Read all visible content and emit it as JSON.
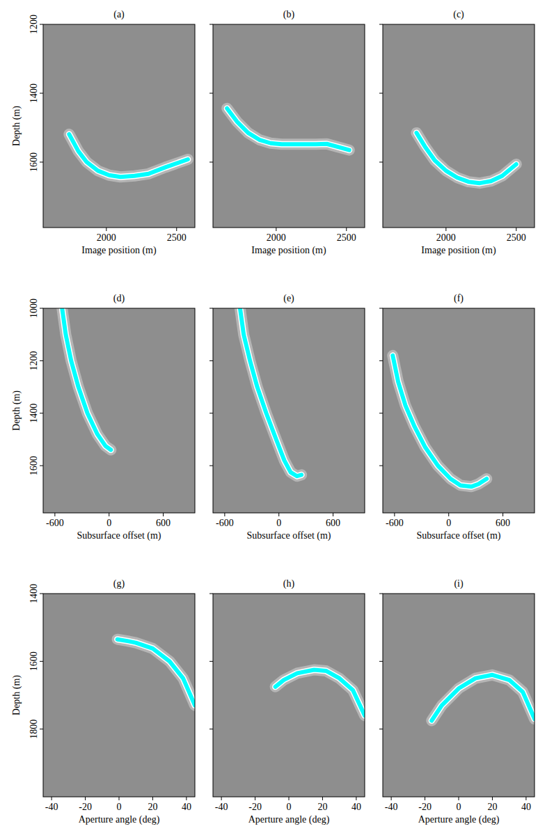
{
  "chart_data": [
    {
      "type": "line",
      "title": "(a)",
      "x_label": "Image position (m)",
      "y_label": "Depth (m)",
      "xlim": [
        1550,
        2630
      ],
      "ylim": [
        1790,
        1200
      ],
      "xticks": [
        2000,
        2500
      ],
      "yticks": [
        1200,
        1400,
        1600
      ],
      "series": [
        {
          "color": "#00ffff",
          "x": [
            1735,
            1800,
            1860,
            1940,
            2020,
            2100,
            2200,
            2300,
            2420,
            2580
          ],
          "values": [
            1519,
            1568,
            1600,
            1625,
            1638,
            1643,
            1640,
            1634,
            1615,
            1592
          ]
        }
      ]
    },
    {
      "type": "line",
      "title": "(b)",
      "x_label": "Image position (m)",
      "xlim": [
        1550,
        2630
      ],
      "ylim": [
        1790,
        1200
      ],
      "xticks": [
        2000,
        2500
      ],
      "yticks": [
        1200,
        1400,
        1600
      ],
      "tick_labels": "x",
      "series": [
        {
          "color": "#00ffff",
          "x": [
            1650,
            1720,
            1800,
            1880,
            1960,
            2040,
            2120,
            2200,
            2280,
            2360,
            2440,
            2520
          ],
          "values": [
            1444,
            1482,
            1515,
            1535,
            1545,
            1548,
            1548,
            1548,
            1548,
            1547,
            1556,
            1565
          ]
        }
      ]
    },
    {
      "type": "line",
      "title": "(c)",
      "x_label": "Image position (m)",
      "xlim": [
        1550,
        2630
      ],
      "ylim": [
        1790,
        1200
      ],
      "xticks": [
        2000,
        2500
      ],
      "yticks": [
        1200,
        1400,
        1600
      ],
      "tick_labels": "x",
      "series": [
        {
          "color": "#00ffff",
          "x": [
            1790,
            1850,
            1920,
            2000,
            2080,
            2160,
            2240,
            2320,
            2400,
            2500
          ],
          "values": [
            1515,
            1555,
            1595,
            1625,
            1645,
            1657,
            1661,
            1655,
            1640,
            1606
          ]
        }
      ]
    },
    {
      "type": "line",
      "title": "(d)",
      "x_label": "Subsurface offset (m)",
      "y_label": "Depth (m)",
      "xlim": [
        -730,
        950
      ],
      "ylim": [
        1780,
        1000
      ],
      "xticks": [
        -600,
        0,
        600
      ],
      "yticks": [
        1000,
        1200,
        1400,
        1600
      ],
      "series": [
        {
          "color": "#00ffff",
          "x": [
            -520,
            -480,
            -420,
            -340,
            -240,
            -130,
            -40,
            20
          ],
          "values": [
            1000,
            1100,
            1200,
            1300,
            1400,
            1480,
            1525,
            1540
          ]
        }
      ]
    },
    {
      "type": "line",
      "title": "(e)",
      "x_label": "Subsurface offset (m)",
      "xlim": [
        -730,
        950
      ],
      "ylim": [
        1780,
        1000
      ],
      "xticks": [
        -600,
        0,
        600
      ],
      "yticks": [
        1000,
        1200,
        1400,
        1600
      ],
      "tick_labels": "x",
      "series": [
        {
          "color": "#00ffff",
          "x": [
            -430,
            -390,
            -320,
            -240,
            -140,
            -30,
            60,
            130,
            200,
            250
          ],
          "values": [
            1000,
            1100,
            1200,
            1300,
            1400,
            1500,
            1580,
            1625,
            1640,
            1635
          ]
        }
      ]
    },
    {
      "type": "line",
      "title": "(f)",
      "x_label": "Subsurface offset (m)",
      "xlim": [
        -730,
        950
      ],
      "ylim": [
        1780,
        1000
      ],
      "xticks": [
        -600,
        0,
        600
      ],
      "yticks": [
        1000,
        1200,
        1400,
        1600
      ],
      "tick_labels": "x",
      "series": [
        {
          "color": "#00ffff",
          "x": [
            -620,
            -560,
            -480,
            -380,
            -260,
            -120,
            20,
            130,
            250,
            330,
            420
          ],
          "values": [
            1180,
            1280,
            1370,
            1450,
            1530,
            1600,
            1650,
            1675,
            1680,
            1670,
            1650
          ]
        }
      ]
    },
    {
      "type": "line",
      "title": "(g)",
      "x_label": "Aperture angle (deg)",
      "y_label": "Depth (m)",
      "xlim": [
        -45,
        45
      ],
      "ylim": [
        2000,
        1400
      ],
      "xticks": [
        -40,
        -20,
        0,
        20,
        40
      ],
      "yticks": [
        1400,
        1600,
        1800
      ],
      "series": [
        {
          "color": "#00ffff",
          "x": [
            -1,
            5,
            10,
            20,
            30,
            38,
            45
          ],
          "values": [
            1535,
            1540,
            1545,
            1562,
            1600,
            1650,
            1730
          ]
        }
      ]
    },
    {
      "type": "line",
      "title": "(h)",
      "x_label": "Aperture angle (deg)",
      "xlim": [
        -45,
        45
      ],
      "ylim": [
        2000,
        1400
      ],
      "xticks": [
        -40,
        -20,
        0,
        20,
        40
      ],
      "yticks": [
        1400,
        1600,
        1800
      ],
      "tick_labels": "x",
      "series": [
        {
          "color": "#00ffff",
          "x": [
            -8,
            -3,
            5,
            15,
            22,
            30,
            38,
            45
          ],
          "values": [
            1675,
            1655,
            1635,
            1625,
            1628,
            1650,
            1685,
            1760
          ]
        }
      ]
    },
    {
      "type": "line",
      "title": "(i)",
      "x_label": "Aperture angle (deg)",
      "xlim": [
        -45,
        45
      ],
      "ylim": [
        2000,
        1400
      ],
      "xticks": [
        -40,
        -20,
        0,
        20,
        40
      ],
      "yticks": [
        1400,
        1600,
        1800
      ],
      "tick_labels": "x",
      "series": [
        {
          "color": "#00ffff",
          "x": [
            -16,
            -10,
            0,
            10,
            20,
            30,
            38,
            45
          ],
          "values": [
            1775,
            1730,
            1680,
            1650,
            1640,
            1655,
            1690,
            1770
          ]
        }
      ]
    }
  ]
}
